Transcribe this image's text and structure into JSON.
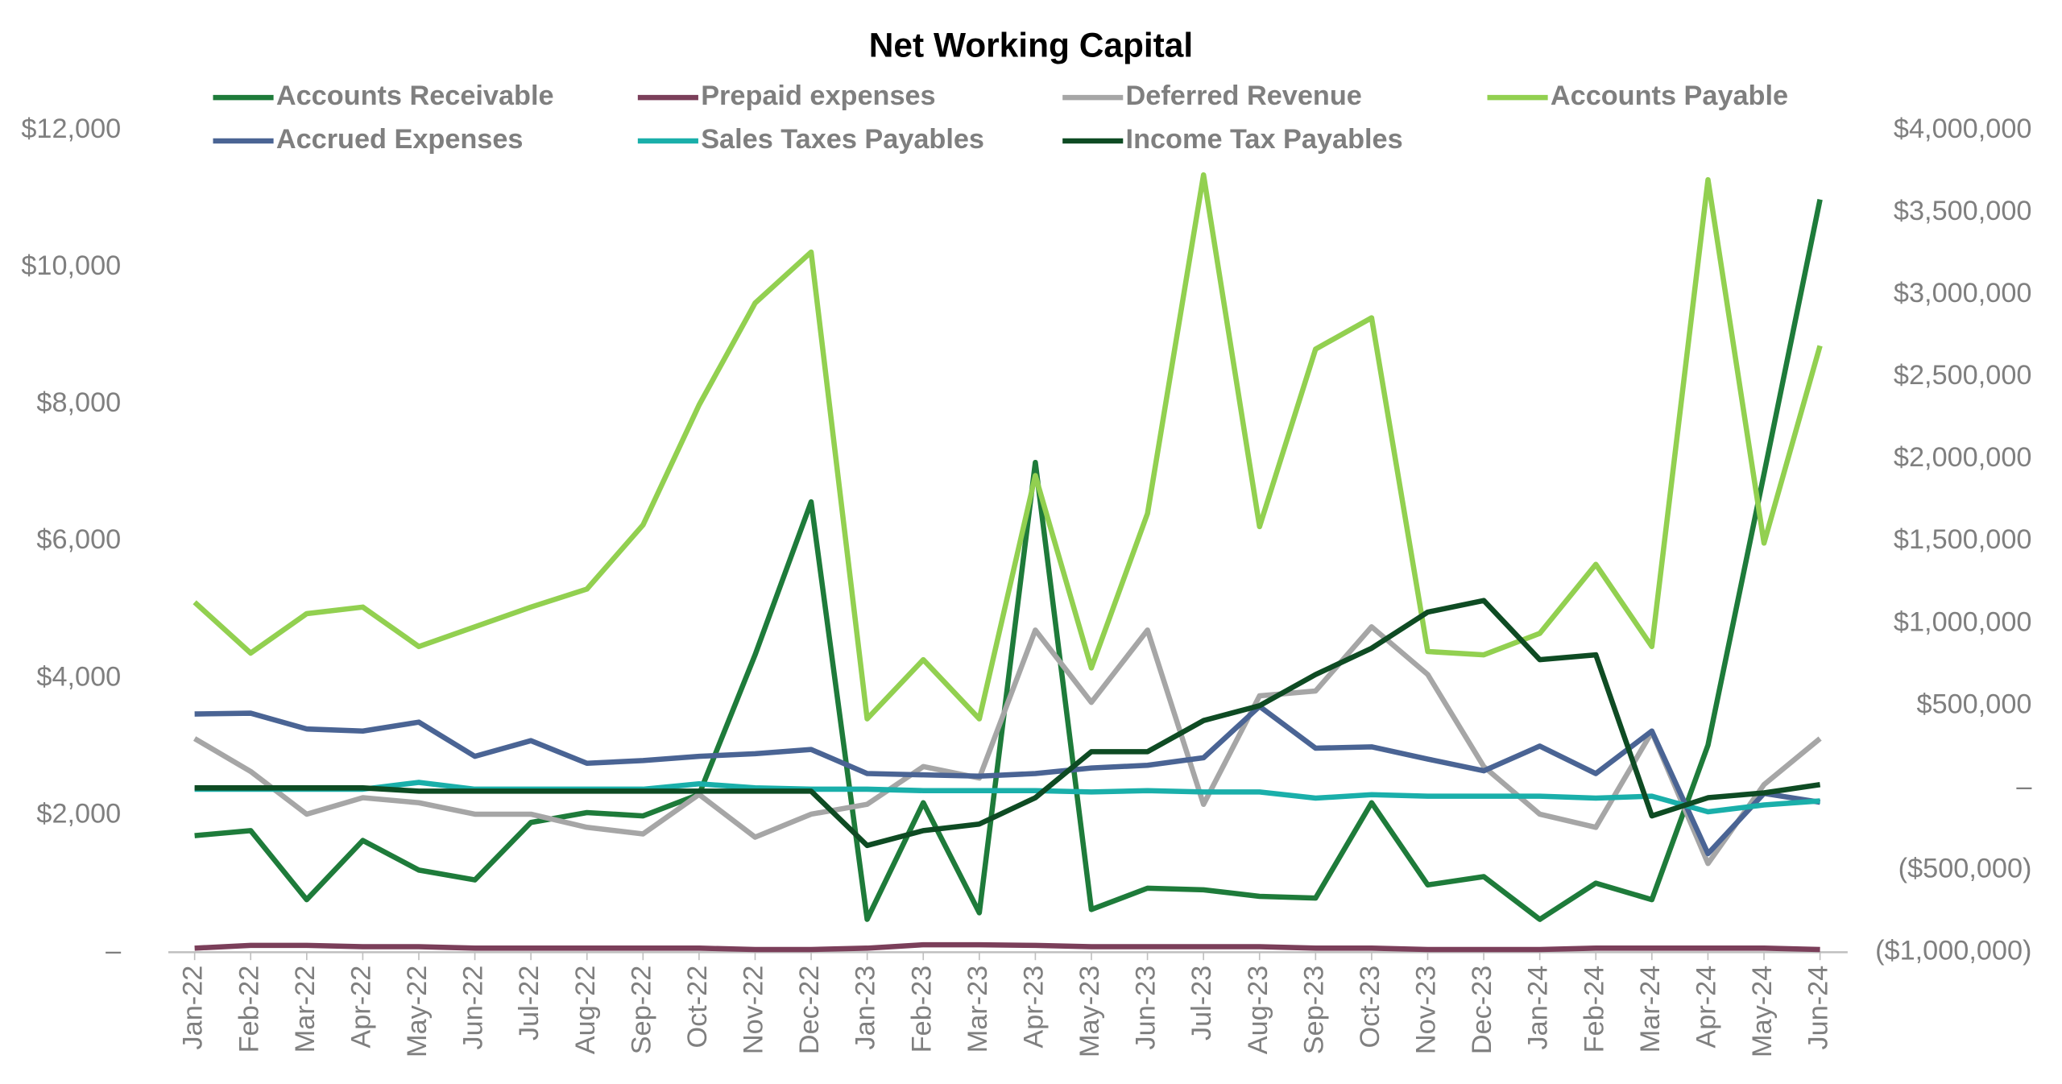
{
  "chart_data": {
    "type": "line",
    "title": "Net Working Capital",
    "categories": [
      "Jan-22",
      "Feb-22",
      "Mar-22",
      "Apr-22",
      "May-22",
      "Jun-22",
      "Jul-22",
      "Aug-22",
      "Sep-22",
      "Oct-22",
      "Nov-22",
      "Dec-22",
      "Jan-23",
      "Feb-23",
      "Mar-23",
      "Apr-23",
      "May-23",
      "Jun-23",
      "Jul-23",
      "Aug-23",
      "Sep-23",
      "Oct-23",
      "Nov-23",
      "Dec-23",
      "Jan-24",
      "Feb-24",
      "Mar-24",
      "Apr-24",
      "May-24",
      "Jun-24"
    ],
    "series": [
      {
        "name": "Accounts Receivable",
        "color": "#1e7b3a",
        "axis": "y2",
        "values": [
          -290000,
          -260000,
          -680000,
          -320000,
          -500000,
          -560000,
          -210000,
          -150000,
          -170000,
          -40000,
          810000,
          1740000,
          -800000,
          -90000,
          -760000,
          1980000,
          -740000,
          -610000,
          -620000,
          -660000,
          -670000,
          -90000,
          -590000,
          -540000,
          -800000,
          -580000,
          -680000,
          260000,
          1910000,
          3580000
        ]
      },
      {
        "name": "Prepaid expenses",
        "color": "#7b3f5a",
        "values": [
          60,
          100,
          100,
          80,
          80,
          60,
          60,
          60,
          60,
          60,
          40,
          40,
          60,
          110,
          110,
          100,
          80,
          80,
          80,
          80,
          60,
          60,
          40,
          40,
          40,
          60,
          60,
          60,
          60,
          40
        ]
      },
      {
        "name": "Deferred Revenue",
        "color": "#a6a6a6",
        "axis": "y2",
        "values": [
          300000,
          100000,
          -160000,
          -60000,
          -90000,
          -160000,
          -160000,
          -240000,
          -280000,
          -40000,
          -300000,
          -160000,
          -100000,
          130000,
          60000,
          960000,
          520000,
          960000,
          -100000,
          560000,
          590000,
          980000,
          690000,
          130000,
          -160000,
          -240000,
          340000,
          -460000,
          20000,
          300000
        ]
      },
      {
        "name": "Accounts Payable",
        "color": "#92d050",
        "axis": "y2",
        "values": [
          1130000,
          820000,
          1060000,
          1100000,
          860000,
          980000,
          1100000,
          1210000,
          1600000,
          2330000,
          2950000,
          3260000,
          420000,
          780000,
          420000,
          1900000,
          730000,
          1670000,
          3730000,
          1590000,
          2670000,
          2860000,
          830000,
          810000,
          940000,
          1360000,
          860000,
          3700000,
          1490000,
          2690000
        ]
      },
      {
        "name": "Accrued Expenses",
        "color": "#4a6494",
        "values": [
          3480,
          3490,
          3260,
          3230,
          3360,
          2860,
          3090,
          2760,
          2800,
          2860,
          2900,
          2960,
          2610,
          2590,
          2570,
          2610,
          2690,
          2730,
          2840,
          3590,
          2980,
          3000,
          2820,
          2650,
          3010,
          2610,
          3230,
          1440,
          2320,
          2190
        ]
      },
      {
        "name": "Sales Taxes Payables",
        "color": "#1aafaa",
        "values": [
          2380,
          2380,
          2380,
          2380,
          2480,
          2380,
          2380,
          2380,
          2380,
          2460,
          2400,
          2380,
          2380,
          2360,
          2360,
          2360,
          2340,
          2360,
          2340,
          2340,
          2250,
          2300,
          2280,
          2280,
          2280,
          2250,
          2280,
          2050,
          2150,
          2210
        ]
      },
      {
        "name": "Income Tax Payables",
        "color": "#0e4b23",
        "axis": "y2",
        "values": [
          0,
          0,
          0,
          0,
          -20000,
          -20000,
          -20000,
          -20000,
          -20000,
          -20000,
          -20000,
          -20000,
          -350000,
          -260000,
          -220000,
          -60000,
          220000,
          220000,
          410000,
          500000,
          690000,
          850000,
          1070000,
          1140000,
          780000,
          810000,
          -170000,
          -60000,
          -30000,
          20000
        ]
      }
    ],
    "ylim": [
      0,
      12000
    ],
    "yticks": [
      {
        "value": 0,
        "label": "–"
      },
      {
        "value": 2000,
        "label": "$2,000"
      },
      {
        "value": 4000,
        "label": "$4,000"
      },
      {
        "value": 6000,
        "label": "$6,000"
      },
      {
        "value": 8000,
        "label": "$8,000"
      },
      {
        "value": 10000,
        "label": "$10,000"
      },
      {
        "value": 12000,
        "label": "$12,000"
      }
    ],
    "y2lim": [
      -1000000,
      4000000
    ],
    "y2ticks": [
      {
        "value": -1000000,
        "label": "($1,000,000)"
      },
      {
        "value": -500000,
        "label": "($500,000)"
      },
      {
        "value": 0,
        "label": "–"
      },
      {
        "value": 500000,
        "label": "$500,000"
      },
      {
        "value": 1000000,
        "label": "$1,000,000"
      },
      {
        "value": 1500000,
        "label": "$1,500,000"
      },
      {
        "value": 2000000,
        "label": "$2,000,000"
      },
      {
        "value": 2500000,
        "label": "$2,500,000"
      },
      {
        "value": 3000000,
        "label": "$3,000,000"
      },
      {
        "value": 3500000,
        "label": "$3,500,000"
      },
      {
        "value": 4000000,
        "label": "$4,000,000"
      }
    ],
    "grid": false,
    "legend": "top"
  }
}
